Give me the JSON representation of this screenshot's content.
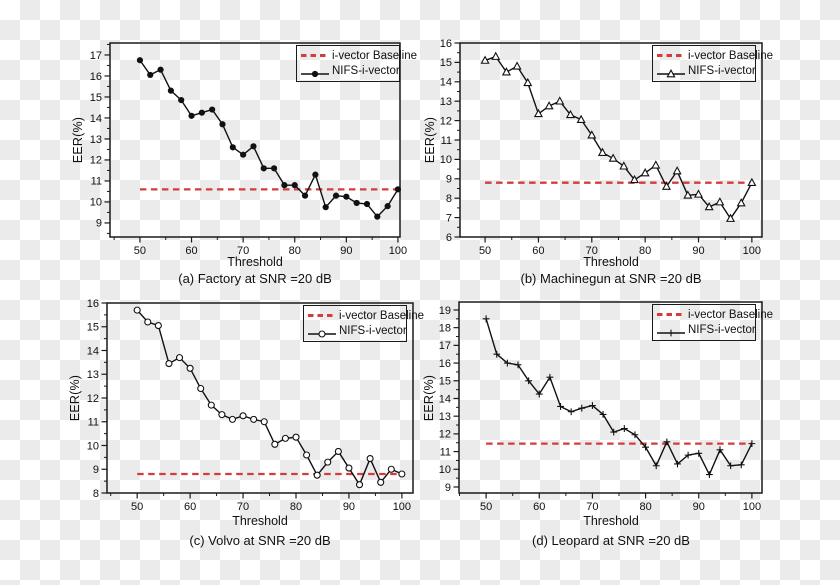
{
  "figure": {
    "background": "transparency-checkerboard",
    "checker_colors": [
      "#ffffff",
      "#ebebeb"
    ],
    "axis_color": "#1a1a1a",
    "baseline_color": "#d43c3c",
    "series_color": "#111111"
  },
  "chart_data": [
    {
      "id": "a",
      "type": "line",
      "caption": "(a) Factory at SNR =20 dB",
      "xlabel": "Threshold",
      "ylabel": "EER(%)",
      "x": [
        50,
        52,
        54,
        56,
        58,
        60,
        62,
        64,
        66,
        68,
        70,
        72,
        74,
        76,
        78,
        80,
        82,
        84,
        86,
        88,
        90,
        92,
        94,
        96,
        98,
        100
      ],
      "series": [
        {
          "name": "i-vector Baseline",
          "style": "dashed",
          "color": "#d43c3c",
          "baseline_value": 10.6
        },
        {
          "name": "NIFS-i-vector",
          "style": "solid",
          "color": "#111111",
          "marker": "filled-circle",
          "values": [
            16.75,
            16.05,
            16.3,
            15.3,
            14.85,
            14.1,
            14.25,
            14.4,
            13.7,
            12.6,
            12.25,
            12.65,
            11.6,
            11.6,
            10.8,
            10.8,
            10.3,
            11.3,
            9.75,
            10.3,
            10.25,
            9.95,
            9.9,
            9.3,
            9.8,
            10.6
          ]
        }
      ],
      "xticks": [
        50,
        60,
        70,
        80,
        90,
        100
      ],
      "yticks": [
        9,
        10,
        11,
        12,
        13,
        14,
        15,
        16,
        17
      ],
      "minor_x_step": 5,
      "minor_y_step": 0.5,
      "xlim": [
        44.2,
        100.4
      ],
      "ylim": [
        8.33,
        17.57
      ],
      "grid": false,
      "legend_position": "top-right"
    },
    {
      "id": "b",
      "type": "line",
      "caption": "(b) Machinegun  at SNR =20 dB",
      "xlabel": "Threshold",
      "ylabel": "EER(%)",
      "x": [
        50,
        52,
        54,
        56,
        58,
        60,
        62,
        64,
        66,
        68,
        70,
        72,
        74,
        76,
        78,
        80,
        82,
        84,
        86,
        88,
        90,
        92,
        94,
        96,
        98,
        100
      ],
      "series": [
        {
          "name": "i-vector Baseline",
          "style": "dashed",
          "color": "#d43c3c",
          "baseline_value": 8.8
        },
        {
          "name": "NIFS-i-vector",
          "style": "solid",
          "color": "#111111",
          "marker": "open-triangle",
          "values": [
            15.1,
            15.3,
            14.5,
            14.8,
            13.95,
            12.35,
            12.75,
            13.0,
            12.3,
            12.05,
            11.25,
            10.35,
            10.05,
            9.65,
            8.95,
            9.3,
            9.7,
            8.6,
            9.4,
            8.15,
            8.2,
            7.55,
            7.8,
            6.95,
            7.75,
            8.8
          ]
        }
      ],
      "xticks": [
        50,
        60,
        70,
        80,
        90,
        100
      ],
      "yticks": [
        6,
        7,
        8,
        9,
        10,
        11,
        12,
        13,
        14,
        15,
        16
      ],
      "minor_x_step": 5,
      "minor_y_step": 0.5,
      "xlim": [
        45.3,
        101.9
      ],
      "ylim": [
        6,
        16
      ],
      "grid": false,
      "legend_position": "top-right"
    },
    {
      "id": "c",
      "type": "line",
      "caption": "(c) Volvo at SNR =20 dB",
      "xlabel": "Threshold",
      "ylabel": "EER(%)",
      "x": [
        50,
        52,
        54,
        56,
        58,
        60,
        62,
        64,
        66,
        68,
        70,
        72,
        74,
        76,
        78,
        80,
        82,
        84,
        86,
        88,
        90,
        92,
        94,
        96,
        98,
        100
      ],
      "series": [
        {
          "name": "i-vector Baseline",
          "style": "dashed",
          "color": "#d43c3c",
          "baseline_value": 8.8
        },
        {
          "name": "NIFS-i-vector",
          "style": "solid",
          "color": "#111111",
          "marker": "open-circle",
          "values": [
            15.7,
            15.2,
            15.05,
            13.45,
            13.7,
            13.25,
            12.4,
            11.7,
            11.3,
            11.1,
            11.25,
            11.1,
            11.0,
            10.05,
            10.3,
            10.35,
            9.6,
            8.75,
            9.3,
            9.75,
            9.05,
            8.35,
            9.45,
            8.45,
            9.0,
            8.8
          ]
        }
      ],
      "xticks": [
        50,
        60,
        70,
        80,
        90,
        100
      ],
      "yticks": [
        8,
        9,
        10,
        11,
        12,
        13,
        14,
        15,
        16
      ],
      "minor_x_step": 5,
      "minor_y_step": 0.5,
      "xlim": [
        44.3,
        102.1
      ],
      "ylim": [
        8,
        16
      ],
      "grid": false,
      "legend_position": "top-right"
    },
    {
      "id": "d",
      "type": "line",
      "caption": "(d) Leopard at SNR =20 dB",
      "xlabel": "Threshold",
      "ylabel": "EER(%)",
      "x": [
        50,
        52,
        54,
        56,
        58,
        60,
        62,
        64,
        66,
        68,
        70,
        72,
        74,
        76,
        78,
        80,
        82,
        84,
        86,
        88,
        90,
        92,
        94,
        96,
        98,
        100
      ],
      "series": [
        {
          "name": "i-vector Baseline",
          "style": "dashed",
          "color": "#d43c3c",
          "baseline_value": 11.45
        },
        {
          "name": "NIFS-i-vector",
          "style": "solid",
          "color": "#111111",
          "marker": "plus",
          "values": [
            18.5,
            16.5,
            16.0,
            15.9,
            15.0,
            14.25,
            15.2,
            13.55,
            13.25,
            13.45,
            13.6,
            13.1,
            12.1,
            12.3,
            11.95,
            11.25,
            10.2,
            11.55,
            10.3,
            10.8,
            10.9,
            9.7,
            11.1,
            10.2,
            10.25,
            11.45
          ]
        }
      ],
      "xticks": [
        50,
        60,
        70,
        80,
        90,
        100
      ],
      "yticks": [
        9,
        10,
        11,
        12,
        13,
        14,
        15,
        16,
        17,
        18,
        19
      ],
      "minor_x_step": 5,
      "minor_y_step": 0.5,
      "xlim": [
        44.9,
        101.9
      ],
      "ylim": [
        8.66,
        19.45
      ],
      "grid": false,
      "legend_position": "top-right"
    }
  ]
}
